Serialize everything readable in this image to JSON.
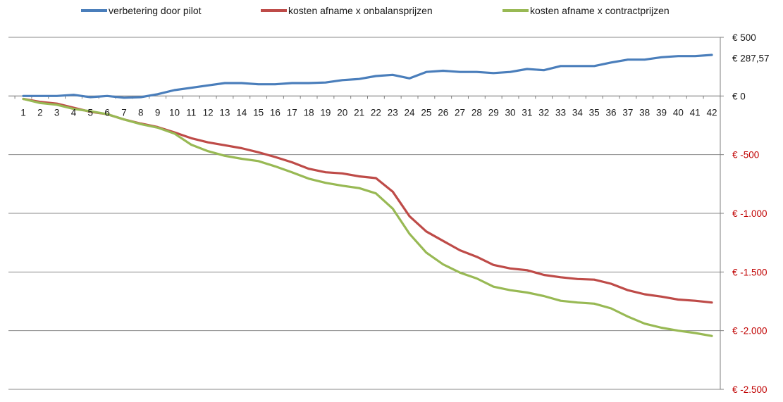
{
  "chart_data": {
    "type": "line",
    "title": "",
    "xlabel": "",
    "ylabel": "",
    "x": [
      1,
      2,
      3,
      4,
      5,
      6,
      7,
      8,
      9,
      10,
      11,
      12,
      13,
      14,
      15,
      16,
      17,
      18,
      19,
      20,
      21,
      22,
      23,
      24,
      25,
      26,
      27,
      28,
      29,
      30,
      31,
      32,
      33,
      34,
      35,
      36,
      37,
      38,
      39,
      40,
      41,
      42
    ],
    "ylim": [
      -2500,
      500
    ],
    "yticks": [
      500,
      0,
      -500,
      -1000,
      -1500,
      -2000,
      -2500
    ],
    "ytick_labels": [
      "€ 500",
      "€ 0",
      "€ -500",
      "€ -1.000",
      "€ -1.500",
      "€ -2.000",
      "€ -2.500"
    ],
    "ytick_colors": [
      "#1a1a1a",
      "#1a1a1a",
      "#c00000",
      "#c00000",
      "#c00000",
      "#c00000",
      "#c00000"
    ],
    "grid": true,
    "legend_position": "top",
    "end_label": "€ 287,57",
    "series": [
      {
        "name": "verbetering door pilot",
        "color": "#4a7ebb",
        "values": [
          0,
          0,
          0,
          10,
          -10,
          0,
          -15,
          -10,
          15,
          50,
          70,
          90,
          110,
          110,
          100,
          100,
          110,
          110,
          115,
          135,
          145,
          170,
          180,
          150,
          205,
          215,
          205,
          205,
          195,
          205,
          230,
          220,
          255,
          255,
          255,
          285,
          310,
          310,
          330,
          340,
          340,
          350
        ]
      },
      {
        "name": "kosten afname x onbalansprijzen",
        "color": "#be4b48",
        "values": [
          -25,
          -50,
          -65,
          -100,
          -135,
          -155,
          -200,
          -235,
          -265,
          -310,
          -360,
          -395,
          -420,
          -445,
          -480,
          -520,
          -565,
          -620,
          -650,
          -660,
          -685,
          -700,
          -815,
          -1025,
          -1155,
          -1235,
          -1315,
          -1370,
          -1440,
          -1470,
          -1485,
          -1525,
          -1545,
          -1560,
          -1565,
          -1600,
          -1655,
          -1690,
          -1710,
          -1735,
          -1745,
          -1760
        ]
      },
      {
        "name": "kosten afname x contractprijzen",
        "color": "#98b954",
        "values": [
          -25,
          -60,
          -75,
          -110,
          -130,
          -155,
          -200,
          -240,
          -270,
          -320,
          -415,
          -470,
          -510,
          -535,
          -555,
          -600,
          -650,
          -705,
          -740,
          -765,
          -785,
          -830,
          -960,
          -1175,
          -1335,
          -1435,
          -1505,
          -1555,
          -1625,
          -1655,
          -1675,
          -1705,
          -1745,
          -1760,
          -1770,
          -1810,
          -1880,
          -1940,
          -1975,
          -2000,
          -2020,
          -2045
        ]
      }
    ]
  }
}
